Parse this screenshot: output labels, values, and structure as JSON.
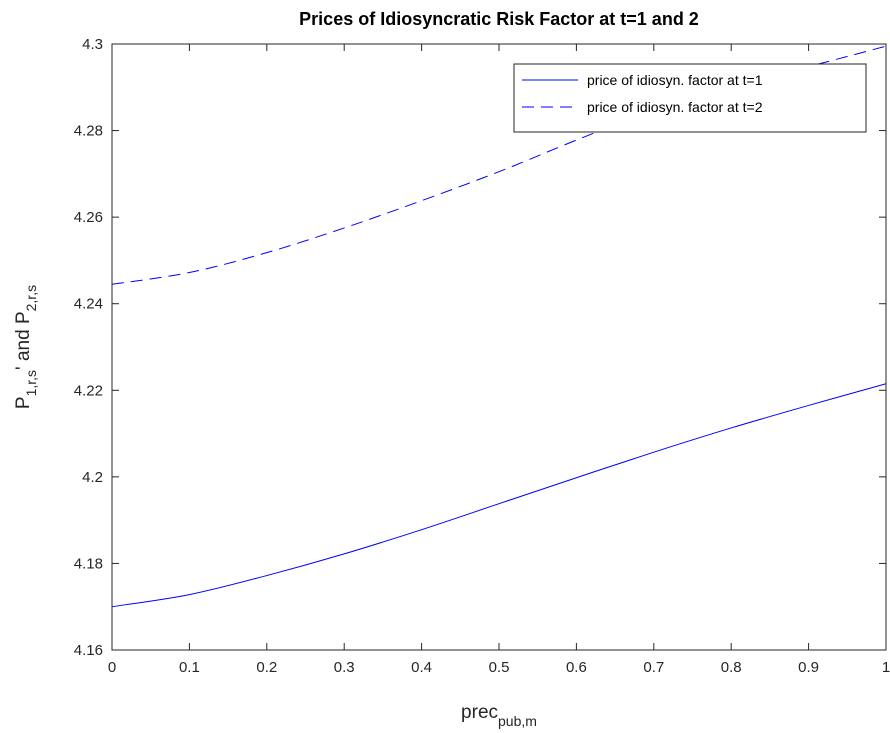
{
  "chart_data": {
    "type": "line",
    "title": "Prices of Idiosyncratic Risk Factor at t=1 and 2",
    "xlabel": {
      "base": "prec",
      "sub": "pub,m"
    },
    "ylabel": {
      "parts": [
        {
          "text": "P",
          "sub": false
        },
        {
          "text": "1,r,s",
          "sub": true
        },
        {
          "text": "' and P",
          "sub": false
        },
        {
          "text": "2,r,s",
          "sub": true
        }
      ]
    },
    "xlim": [
      0,
      1
    ],
    "ylim": [
      4.16,
      4.3
    ],
    "xticks": [
      "0",
      "0.1",
      "0.2",
      "0.3",
      "0.4",
      "0.5",
      "0.6",
      "0.7",
      "0.8",
      "0.9",
      "1"
    ],
    "yticks": [
      "4.16",
      "4.18",
      "4.2",
      "4.22",
      "4.24",
      "4.26",
      "4.28",
      "4.3"
    ],
    "grid": false,
    "legend_position": "top-right",
    "x": [
      0,
      0.1,
      0.2,
      0.3,
      0.4,
      0.5,
      0.6,
      0.7,
      0.8,
      0.9,
      1.0
    ],
    "series": [
      {
        "name": "price of idiosyn. factor at t=1",
        "style": "solid",
        "color": "#0000ff",
        "values": [
          4.17,
          4.1728,
          4.1772,
          4.1822,
          4.1878,
          4.1938,
          4.1998,
          4.2057,
          4.2113,
          4.2165,
          4.2215
        ]
      },
      {
        "name": "price of idiosyn. factor at t=2",
        "style": "dashed",
        "color": "#0000ff",
        "values": [
          4.2445,
          4.2472,
          4.2518,
          4.2575,
          4.2638,
          4.2705,
          4.2778,
          4.2848,
          4.2905,
          4.2948,
          4.2995
        ]
      }
    ]
  }
}
